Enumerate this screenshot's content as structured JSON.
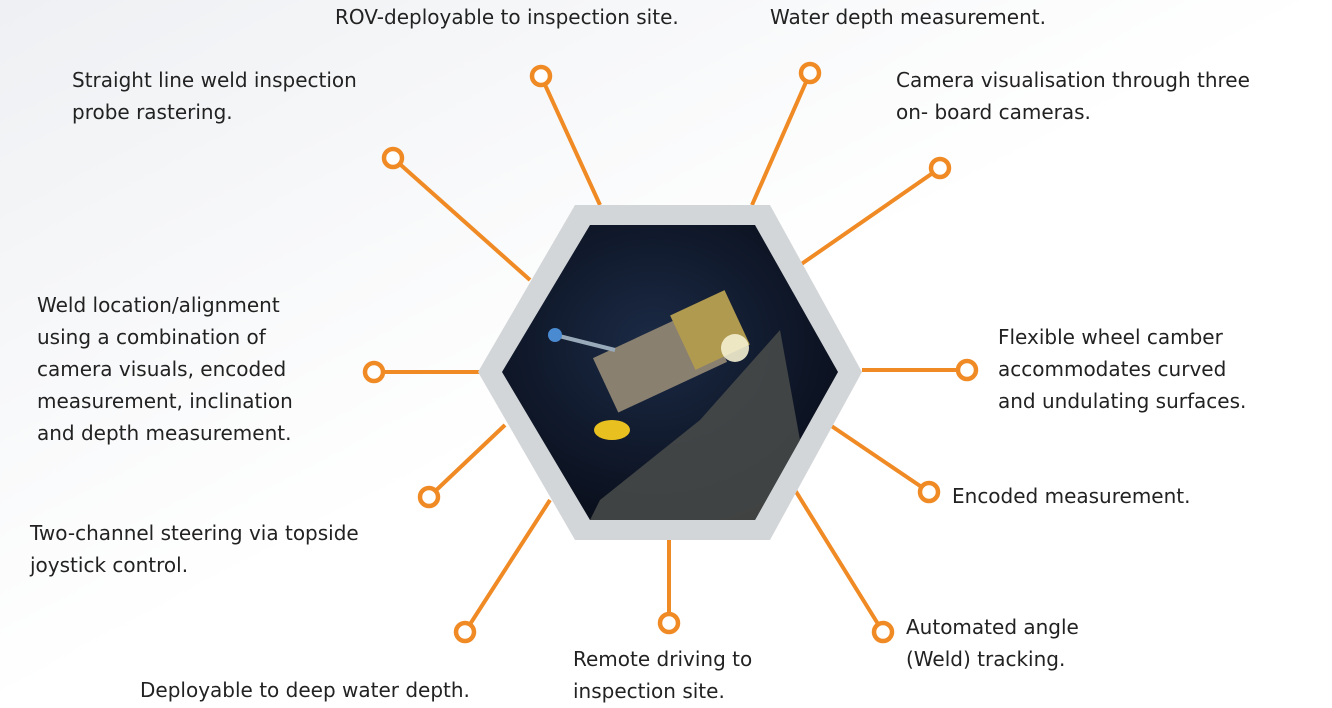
{
  "features": [
    {
      "lines": [
        "ROV-deployable to inspection site."
      ]
    },
    {
      "lines": [
        "Water depth measurement."
      ]
    },
    {
      "lines": [
        "Camera visualisation through three",
        "on- board cameras."
      ]
    },
    {
      "lines": [
        "Straight line weld inspection",
        "probe rastering."
      ]
    },
    {
      "lines": [
        "Weld location/alignment",
        "using a combination of",
        "camera visuals, encoded",
        "measurement, inclination",
        "and depth measurement."
      ]
    },
    {
      "lines": [
        "Flexible wheel camber",
        "accommodates curved",
        "and undulating surfaces."
      ]
    },
    {
      "lines": [
        "Encoded measurement."
      ]
    },
    {
      "lines": [
        "Two-channel steering via topside",
        "joystick control."
      ]
    },
    {
      "lines": [
        "Deployable to deep water depth."
      ]
    },
    {
      "lines": [
        "Remote driving to",
        "inspection site."
      ]
    },
    {
      "lines": [
        "Automated angle",
        "(Weld) tracking."
      ]
    }
  ]
}
